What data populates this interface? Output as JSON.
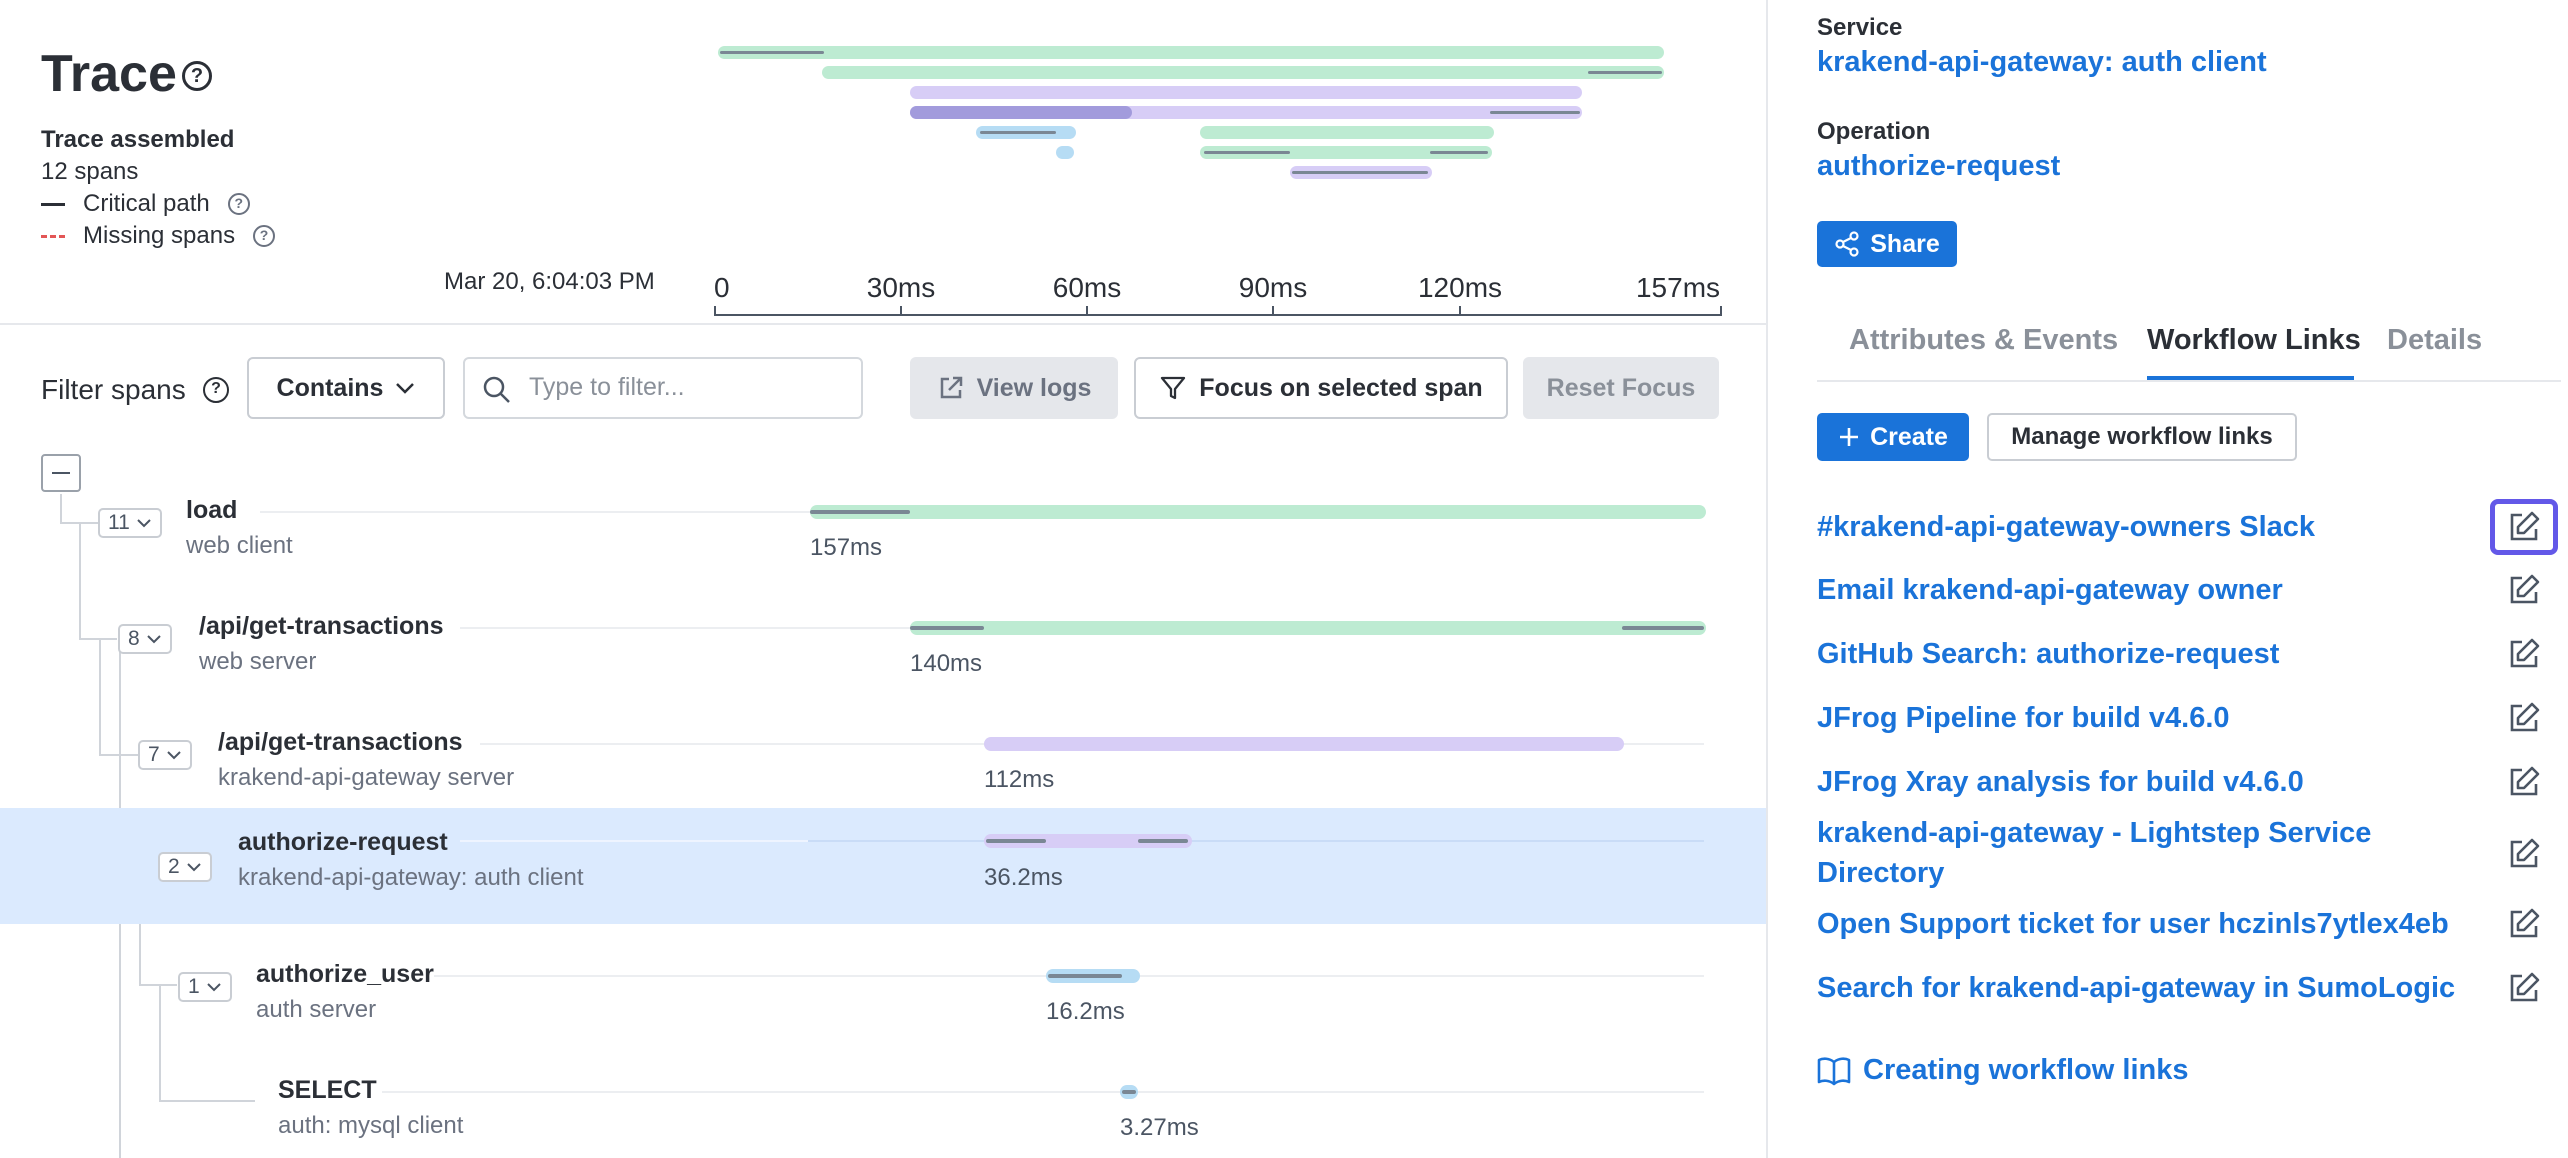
{
  "header": {
    "title": "Trace",
    "status": "Trace assembled",
    "span_count": "12 spans",
    "legend_critical": "Critical path",
    "legend_missing": "Missing spans",
    "timestamp": "Mar 20, 6:04:03 PM",
    "axis_ticks": [
      "0",
      "30ms",
      "60ms",
      "90ms",
      "120ms",
      "157ms"
    ]
  },
  "filter": {
    "label": "Filter spans",
    "mode": "Contains",
    "placeholder": "Type to filter...",
    "view_logs": "View logs",
    "focus": "Focus on selected span",
    "reset": "Reset Focus"
  },
  "spans": [
    {
      "name": "load",
      "service": "web client",
      "count": "11",
      "duration": "157ms",
      "color": "#bdebd2"
    },
    {
      "name": "/api/get-transactions",
      "service": "web server",
      "count": "8",
      "duration": "140ms",
      "color": "#bdebd2"
    },
    {
      "name": "/api/get-transactions",
      "service": "krakend-api-gateway server",
      "count": "7",
      "duration": "112ms",
      "color": "#d7cdf6"
    },
    {
      "name": "authorize-request",
      "service": "krakend-api-gateway: auth client",
      "count": "2",
      "duration": "36.2ms",
      "color": "#d7cdf6",
      "selected": true
    },
    {
      "name": "authorize_user",
      "service": "auth server",
      "count": "1",
      "duration": "16.2ms",
      "color": "#b6dcf4"
    },
    {
      "name": "SELECT",
      "service": "auth: mysql client",
      "count": "",
      "duration": "3.27ms",
      "color": "#b6dcf4"
    }
  ],
  "details": {
    "service_label": "Service",
    "service_value": "krakend-api-gateway: auth client",
    "operation_label": "Operation",
    "operation_value": "authorize-request",
    "share": "Share"
  },
  "tabs": [
    {
      "label": "Attributes & Events",
      "active": false
    },
    {
      "label": "Workflow Links",
      "active": true
    },
    {
      "label": "Details",
      "active": false
    }
  ],
  "workflow": {
    "create": "Create",
    "manage": "Manage workflow links",
    "links": [
      "#krakend-api-gateway-owners Slack",
      "Email krakend-api-gateway owner",
      "GitHub Search: authorize-request",
      "JFrog Pipeline for build v4.6.0",
      "JFrog Xray analysis for build v4.6.0",
      "krakend-api-gateway - Lightstep Service Directory",
      "Open Support ticket for user hczinls7ytlex4eb",
      "Search for krakend-api-gateway in SumoLogic"
    ],
    "docs": "Creating workflow links"
  },
  "colors": {
    "accent": "#1a73d9",
    "selected_row": "#dbeafe",
    "green_span": "#bdebd2",
    "purple_span": "#d7cdf6",
    "blue_span": "#b6dcf4",
    "focus_ring": "#6358e8"
  }
}
